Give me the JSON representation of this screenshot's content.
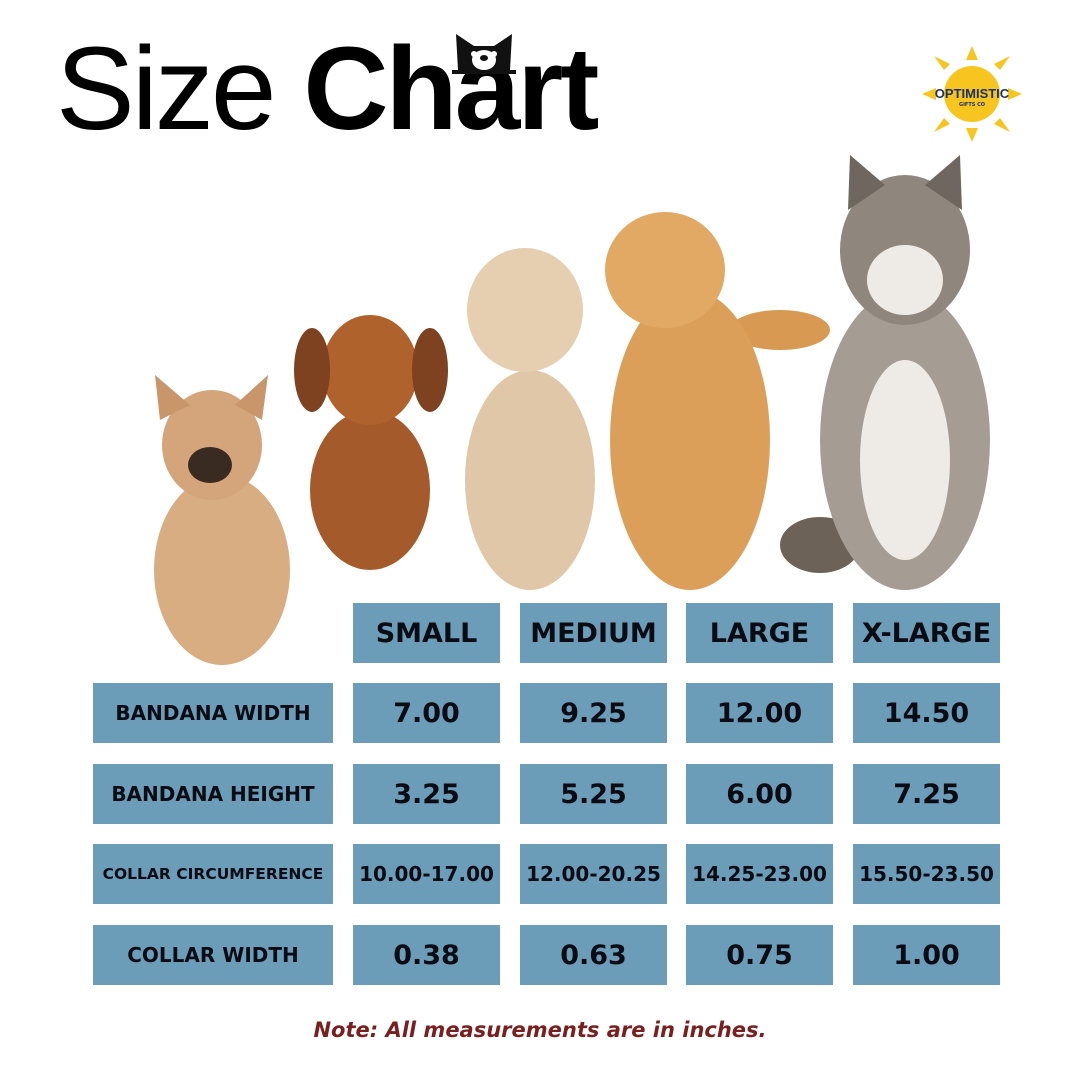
{
  "header": {
    "title_regular": "Size",
    "title_bold": "Chart"
  },
  "logo": {
    "text": "OPTIMISTIC",
    "sub": "GIFTS CO",
    "color": "#f7c520"
  },
  "table": {
    "columns": [
      "SMALL",
      "MEDIUM",
      "LARGE",
      "X-LARGE"
    ],
    "rows": [
      {
        "label": "BANDANA WIDTH",
        "values": [
          "7.00",
          "9.25",
          "12.00",
          "14.50"
        ]
      },
      {
        "label": "BANDANA HEIGHT",
        "values": [
          "3.25",
          "5.25",
          "6.00",
          "7.25"
        ]
      },
      {
        "label": "COLLAR CIRCUMFERENCE",
        "values": [
          "10.00-17.00",
          "12.00-20.25",
          "14.25-23.00",
          "15.50-23.50"
        ]
      },
      {
        "label": "COLLAR WIDTH",
        "values": [
          "0.38",
          "0.63",
          "0.75",
          "1.00"
        ]
      }
    ],
    "cell_color": "#6b9db8"
  },
  "dogs": [
    "french-bulldog",
    "dachshund",
    "poodle",
    "golden-retriever",
    "husky"
  ],
  "note": "Note: All measurements are in inches."
}
